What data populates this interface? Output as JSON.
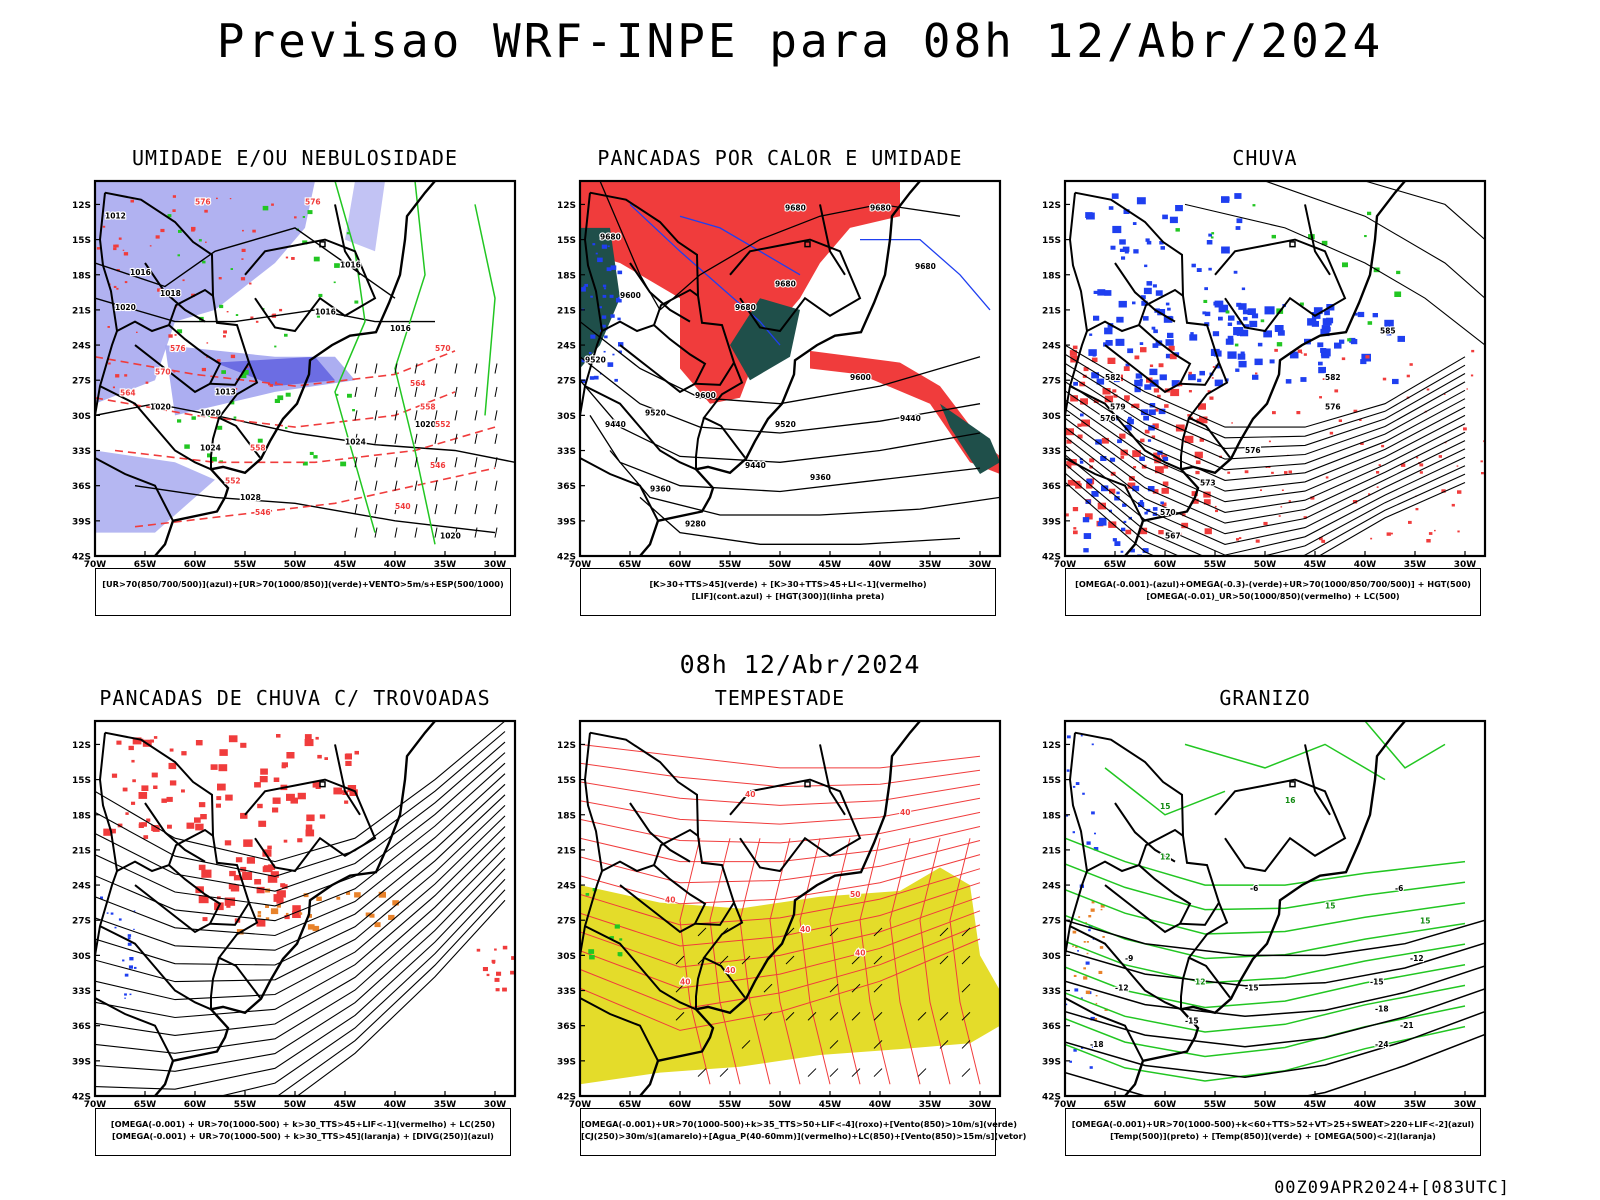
{
  "title": "Previsao WRF-INPE  para 08h 12/Abr/2024",
  "mid_title": "08h 12/Abr/2024",
  "footer": "00Z09APR2024+[083UTC]",
  "colors": {
    "blue_fill": "#a8aaf0",
    "blue_dark": "#5c5ce0",
    "blue": "#1f3ff0",
    "green": "#22c622",
    "red": "#f03c3c",
    "dark_teal": "#1f4f4a",
    "orange": "#e8822a",
    "yellow": "#e4dc2a",
    "black": "#000000"
  },
  "chart_data": [
    {
      "type": "contour-map",
      "title": "UMIDADE E/OU NEBULOSIDADE",
      "legend": [
        "[UR>70(850/700/500)](azul)+[UR>70(1000/850)](verde)+VENTO>5m/s+ESP(500/1000)"
      ],
      "x_ticks": [
        "70W",
        "65W",
        "60W",
        "55W",
        "50W",
        "45W",
        "40W",
        "35W",
        "30W"
      ],
      "y_ticks": [
        "12S",
        "15S",
        "18S",
        "21S",
        "24S",
        "27S",
        "30S",
        "33S",
        "36S",
        "39S",
        "42S"
      ],
      "xlim": [
        -70,
        -28
      ],
      "ylim": [
        -42,
        -10
      ],
      "contour_labels": [
        {
          "text": "1012",
          "lon": -69.0,
          "lat": -13.2,
          "color": "black"
        },
        {
          "text": "1016",
          "lon": -66.5,
          "lat": -18.0,
          "color": "black"
        },
        {
          "text": "1018",
          "lon": -63.5,
          "lat": -19.8,
          "color": "black"
        },
        {
          "text": "1016",
          "lon": -45.5,
          "lat": -17.4,
          "color": "black"
        },
        {
          "text": "1016",
          "lon": -48.0,
          "lat": -21.4,
          "color": "black"
        },
        {
          "text": "1016",
          "lon": -40.5,
          "lat": -22.8,
          "color": "black"
        },
        {
          "text": "1020",
          "lon": -68.0,
          "lat": -21.0,
          "color": "black"
        },
        {
          "text": "1020",
          "lon": -64.5,
          "lat": -29.5,
          "color": "black"
        },
        {
          "text": "1020",
          "lon": -59.5,
          "lat": -30.0,
          "color": "black"
        },
        {
          "text": "1020",
          "lon": -38.0,
          "lat": -31.0,
          "color": "black"
        },
        {
          "text": "1024",
          "lon": -59.5,
          "lat": -33.0,
          "color": "black"
        },
        {
          "text": "1024",
          "lon": -45.0,
          "lat": -32.5,
          "color": "black"
        },
        {
          "text": "1028",
          "lon": -55.5,
          "lat": -37.2,
          "color": "black"
        },
        {
          "text": "1020",
          "lon": -35.5,
          "lat": -40.5,
          "color": "black"
        },
        {
          "text": "1013",
          "lon": -58.0,
          "lat": -28.2,
          "color": "black"
        },
        {
          "text": "576",
          "lon": -60.0,
          "lat": -12.0,
          "color": "red"
        },
        {
          "text": "576",
          "lon": -49.0,
          "lat": -12.0,
          "color": "red"
        },
        {
          "text": "576",
          "lon": -62.5,
          "lat": -24.5,
          "color": "red"
        },
        {
          "text": "570",
          "lon": -64.0,
          "lat": -26.5,
          "color": "red"
        },
        {
          "text": "564",
          "lon": -67.5,
          "lat": -28.3,
          "color": "red"
        },
        {
          "text": "558",
          "lon": -54.5,
          "lat": -33.0,
          "color": "red"
        },
        {
          "text": "552",
          "lon": -57.0,
          "lat": -35.8,
          "color": "red"
        },
        {
          "text": "546",
          "lon": -54.0,
          "lat": -38.5,
          "color": "red"
        },
        {
          "text": "540",
          "lon": -40.0,
          "lat": -38.0,
          "color": "red"
        },
        {
          "text": "546",
          "lon": -36.5,
          "lat": -34.5,
          "color": "red"
        },
        {
          "text": "552",
          "lon": -36.0,
          "lat": -31.0,
          "color": "red"
        },
        {
          "text": "558",
          "lon": -37.5,
          "lat": -29.5,
          "color": "red"
        },
        {
          "text": "564",
          "lon": -38.5,
          "lat": -27.5,
          "color": "red"
        },
        {
          "text": "570",
          "lon": -36.0,
          "lat": -24.5,
          "color": "red"
        }
      ]
    },
    {
      "type": "contour-map",
      "title": "PANCADAS POR CALOR E UMIDADE",
      "legend": [
        "[K>30+TTS>45](verde) + [K>30+TTS>45+LI<-1](vermelho)",
        "[LIF](cont.azul) + [HGT(300)](linha preta)"
      ],
      "x_ticks": [
        "70W",
        "65W",
        "60W",
        "55W",
        "50W",
        "45W",
        "40W",
        "35W",
        "30W"
      ],
      "y_ticks": [
        "12S",
        "15S",
        "18S",
        "21S",
        "24S",
        "27S",
        "30S",
        "33S",
        "36S",
        "39S",
        "42S"
      ],
      "xlim": [
        -70,
        -28
      ],
      "ylim": [
        -42,
        -10
      ],
      "contour_labels": [
        {
          "text": "9680",
          "lon": -68.0,
          "lat": -15.0,
          "color": "black"
        },
        {
          "text": "9600",
          "lon": -66.0,
          "lat": -20.0,
          "color": "black"
        },
        {
          "text": "9520",
          "lon": -69.5,
          "lat": -25.5,
          "color": "black"
        },
        {
          "text": "9440",
          "lon": -67.5,
          "lat": -31.0,
          "color": "black"
        },
        {
          "text": "9360",
          "lon": -63.0,
          "lat": -36.5,
          "color": "black"
        },
        {
          "text": "9280",
          "lon": -59.5,
          "lat": -39.5,
          "color": "black"
        },
        {
          "text": "9520",
          "lon": -63.5,
          "lat": -30.0,
          "color": "black"
        },
        {
          "text": "9600",
          "lon": -58.5,
          "lat": -28.5,
          "color": "black"
        },
        {
          "text": "9680",
          "lon": -49.5,
          "lat": -12.5,
          "color": "black"
        },
        {
          "text": "9680",
          "lon": -41.0,
          "lat": -12.5,
          "color": "black"
        },
        {
          "text": "9680",
          "lon": -50.5,
          "lat": -19.0,
          "color": "black"
        },
        {
          "text": "9680",
          "lon": -36.5,
          "lat": -17.5,
          "color": "black"
        },
        {
          "text": "9680",
          "lon": -54.5,
          "lat": -21.0,
          "color": "black"
        },
        {
          "text": "9600",
          "lon": -43.0,
          "lat": -27.0,
          "color": "black"
        },
        {
          "text": "9520",
          "lon": -50.5,
          "lat": -31.0,
          "color": "black"
        },
        {
          "text": "9440",
          "lon": -53.5,
          "lat": -34.5,
          "color": "black"
        },
        {
          "text": "9440",
          "lon": -38.0,
          "lat": -30.5,
          "color": "black"
        },
        {
          "text": "9360",
          "lon": -47.0,
          "lat": -35.5,
          "color": "black"
        }
      ]
    },
    {
      "type": "contour-map",
      "title": "CHUVA",
      "legend": [
        "[OMEGA(-0.001)-(azul)+OMEGA(-0.3)-(verde)+UR>70(1000/850/700/500)] + HGT(500)",
        "[OMEGA(-0.01)_UR>50(1000/850)(vermelho) + LC(500)"
      ],
      "x_ticks": [
        "70W",
        "65W",
        "60W",
        "55W",
        "50W",
        "45W",
        "40W",
        "35W",
        "30W"
      ],
      "y_ticks": [
        "12S",
        "15S",
        "18S",
        "21S",
        "24S",
        "27S",
        "30S",
        "33S",
        "36S",
        "39S",
        "42S"
      ],
      "xlim": [
        -70,
        -28
      ],
      "ylim": [
        -42,
        -10
      ],
      "contour_labels": [
        {
          "text": "585",
          "lon": -38.5,
          "lat": -23.0,
          "color": "black"
        },
        {
          "text": "582",
          "lon": -66.0,
          "lat": -27.0,
          "color": "black"
        },
        {
          "text": "582",
          "lon": -44.0,
          "lat": -27.0,
          "color": "black"
        },
        {
          "text": "579",
          "lon": -65.5,
          "lat": -29.5,
          "color": "black"
        },
        {
          "text": "576",
          "lon": -66.5,
          "lat": -30.5,
          "color": "black"
        },
        {
          "text": "576",
          "lon": -44.0,
          "lat": -29.5,
          "color": "black"
        },
        {
          "text": "576",
          "lon": -52.0,
          "lat": -33.2,
          "color": "black"
        },
        {
          "text": "573",
          "lon": -56.5,
          "lat": -36.0,
          "color": "black"
        },
        {
          "text": "570",
          "lon": -60.5,
          "lat": -38.5,
          "color": "black"
        },
        {
          "text": "567",
          "lon": -60.0,
          "lat": -40.5,
          "color": "black"
        }
      ]
    },
    {
      "type": "streamline-map",
      "title": "PANCADAS DE CHUVA C/ TROVOADAS",
      "legend": [
        "[OMEGA(-0.001) + UR>70(1000-500) + k>30_TTS>45+LIF<-1](vermelho) + LC(250)",
        "[OMEGA(-0.001) + UR>70(1000-500) + k>30_TTS>45](laranja) + [DIVG(250)](azul)"
      ],
      "x_ticks": [
        "70W",
        "65W",
        "60W",
        "55W",
        "50W",
        "45W",
        "40W",
        "35W",
        "30W"
      ],
      "y_ticks": [
        "12S",
        "15S",
        "18S",
        "21S",
        "24S",
        "27S",
        "30S",
        "33S",
        "36S",
        "39S",
        "42S"
      ],
      "xlim": [
        -70,
        -28
      ],
      "ylim": [
        -42,
        -10
      ],
      "contour_labels": []
    },
    {
      "type": "contour-map",
      "title": "TEMPESTADE",
      "legend": [
        "[OMEGA(-0.001)+UR>70(1000-500)+k>35_TTS>50+LIF<-4](roxo)+[Vento(850)>10m/s](verde)",
        "[CJ(250)>30m/s](amarelo)+[Agua_P(40-60mm)](vermelho)+LC(850)+[Vento(850)>15m/s](vetor)"
      ],
      "x_ticks": [
        "70W",
        "65W",
        "60W",
        "55W",
        "50W",
        "45W",
        "40W",
        "35W",
        "30W"
      ],
      "y_ticks": [
        "12S",
        "15S",
        "18S",
        "21S",
        "24S",
        "27S",
        "30S",
        "33S",
        "36S",
        "39S",
        "42S"
      ],
      "xlim": [
        -70,
        -28
      ],
      "ylim": [
        -42,
        -10
      ],
      "contour_labels": [
        {
          "text": "40",
          "lon": -53.5,
          "lat": -16.5,
          "color": "red"
        },
        {
          "text": "40",
          "lon": -38.0,
          "lat": -18.0,
          "color": "red"
        },
        {
          "text": "50",
          "lon": -43.0,
          "lat": -25.0,
          "color": "red"
        },
        {
          "text": "40",
          "lon": -61.5,
          "lat": -25.5,
          "color": "red"
        },
        {
          "text": "40",
          "lon": -48.0,
          "lat": -28.0,
          "color": "red"
        },
        {
          "text": "40",
          "lon": -42.5,
          "lat": -30.0,
          "color": "red"
        },
        {
          "text": "40",
          "lon": -55.5,
          "lat": -31.5,
          "color": "red"
        },
        {
          "text": "40",
          "lon": -60.0,
          "lat": -32.5,
          "color": "red"
        }
      ]
    },
    {
      "type": "contour-map",
      "title": "GRANIZO",
      "legend": [
        "[OMEGA(-0.001)+UR>70(1000-500)+k<60+TTS>52+VT>25+SWEAT>220+LIF<-2](azul)",
        "[Temp(500)](preto) + [Temp(850)](verde) + [OMEGA(500)<-2](laranja)"
      ],
      "x_ticks": [
        "70W",
        "65W",
        "60W",
        "55W",
        "50W",
        "45W",
        "40W",
        "35W",
        "30W"
      ],
      "y_ticks": [
        "12S",
        "15S",
        "18S",
        "21S",
        "24S",
        "27S",
        "30S",
        "33S",
        "36S",
        "39S",
        "42S"
      ],
      "xlim": [
        -70,
        -28
      ],
      "ylim": [
        -42,
        -10
      ],
      "contour_labels": [
        {
          "text": "15",
          "lon": -60.5,
          "lat": -17.5,
          "color": "green"
        },
        {
          "text": "16",
          "lon": -48.0,
          "lat": -17.0,
          "color": "green"
        },
        {
          "text": "12",
          "lon": -60.5,
          "lat": -21.8,
          "color": "green"
        },
        {
          "text": "-6",
          "lon": -51.5,
          "lat": -24.5,
          "color": "black"
        },
        {
          "text": "-6",
          "lon": -37.0,
          "lat": -24.5,
          "color": "black"
        },
        {
          "text": "15",
          "lon": -44.0,
          "lat": -26.0,
          "color": "green"
        },
        {
          "text": "15",
          "lon": -34.5,
          "lat": -27.3,
          "color": "green"
        },
        {
          "text": "-9",
          "lon": -64.0,
          "lat": -30.5,
          "color": "black"
        },
        {
          "text": "-12",
          "lon": -35.5,
          "lat": -30.5,
          "color": "black"
        },
        {
          "text": "12",
          "lon": -57.0,
          "lat": -32.5,
          "color": "green"
        },
        {
          "text": "-12",
          "lon": -65.0,
          "lat": -33.0,
          "color": "black"
        },
        {
          "text": "-15",
          "lon": -52.0,
          "lat": -33.0,
          "color": "black"
        },
        {
          "text": "-15",
          "lon": -39.5,
          "lat": -32.5,
          "color": "black"
        },
        {
          "text": "-18",
          "lon": -39.0,
          "lat": -34.8,
          "color": "black"
        },
        {
          "text": "-15",
          "lon": -58.0,
          "lat": -35.8,
          "color": "black"
        },
        {
          "text": "-21",
          "lon": -36.5,
          "lat": -36.2,
          "color": "black"
        },
        {
          "text": "-18",
          "lon": -67.5,
          "lat": -37.8,
          "color": "black"
        },
        {
          "text": "-24",
          "lon": -39.0,
          "lat": -37.8,
          "color": "black"
        }
      ]
    }
  ]
}
